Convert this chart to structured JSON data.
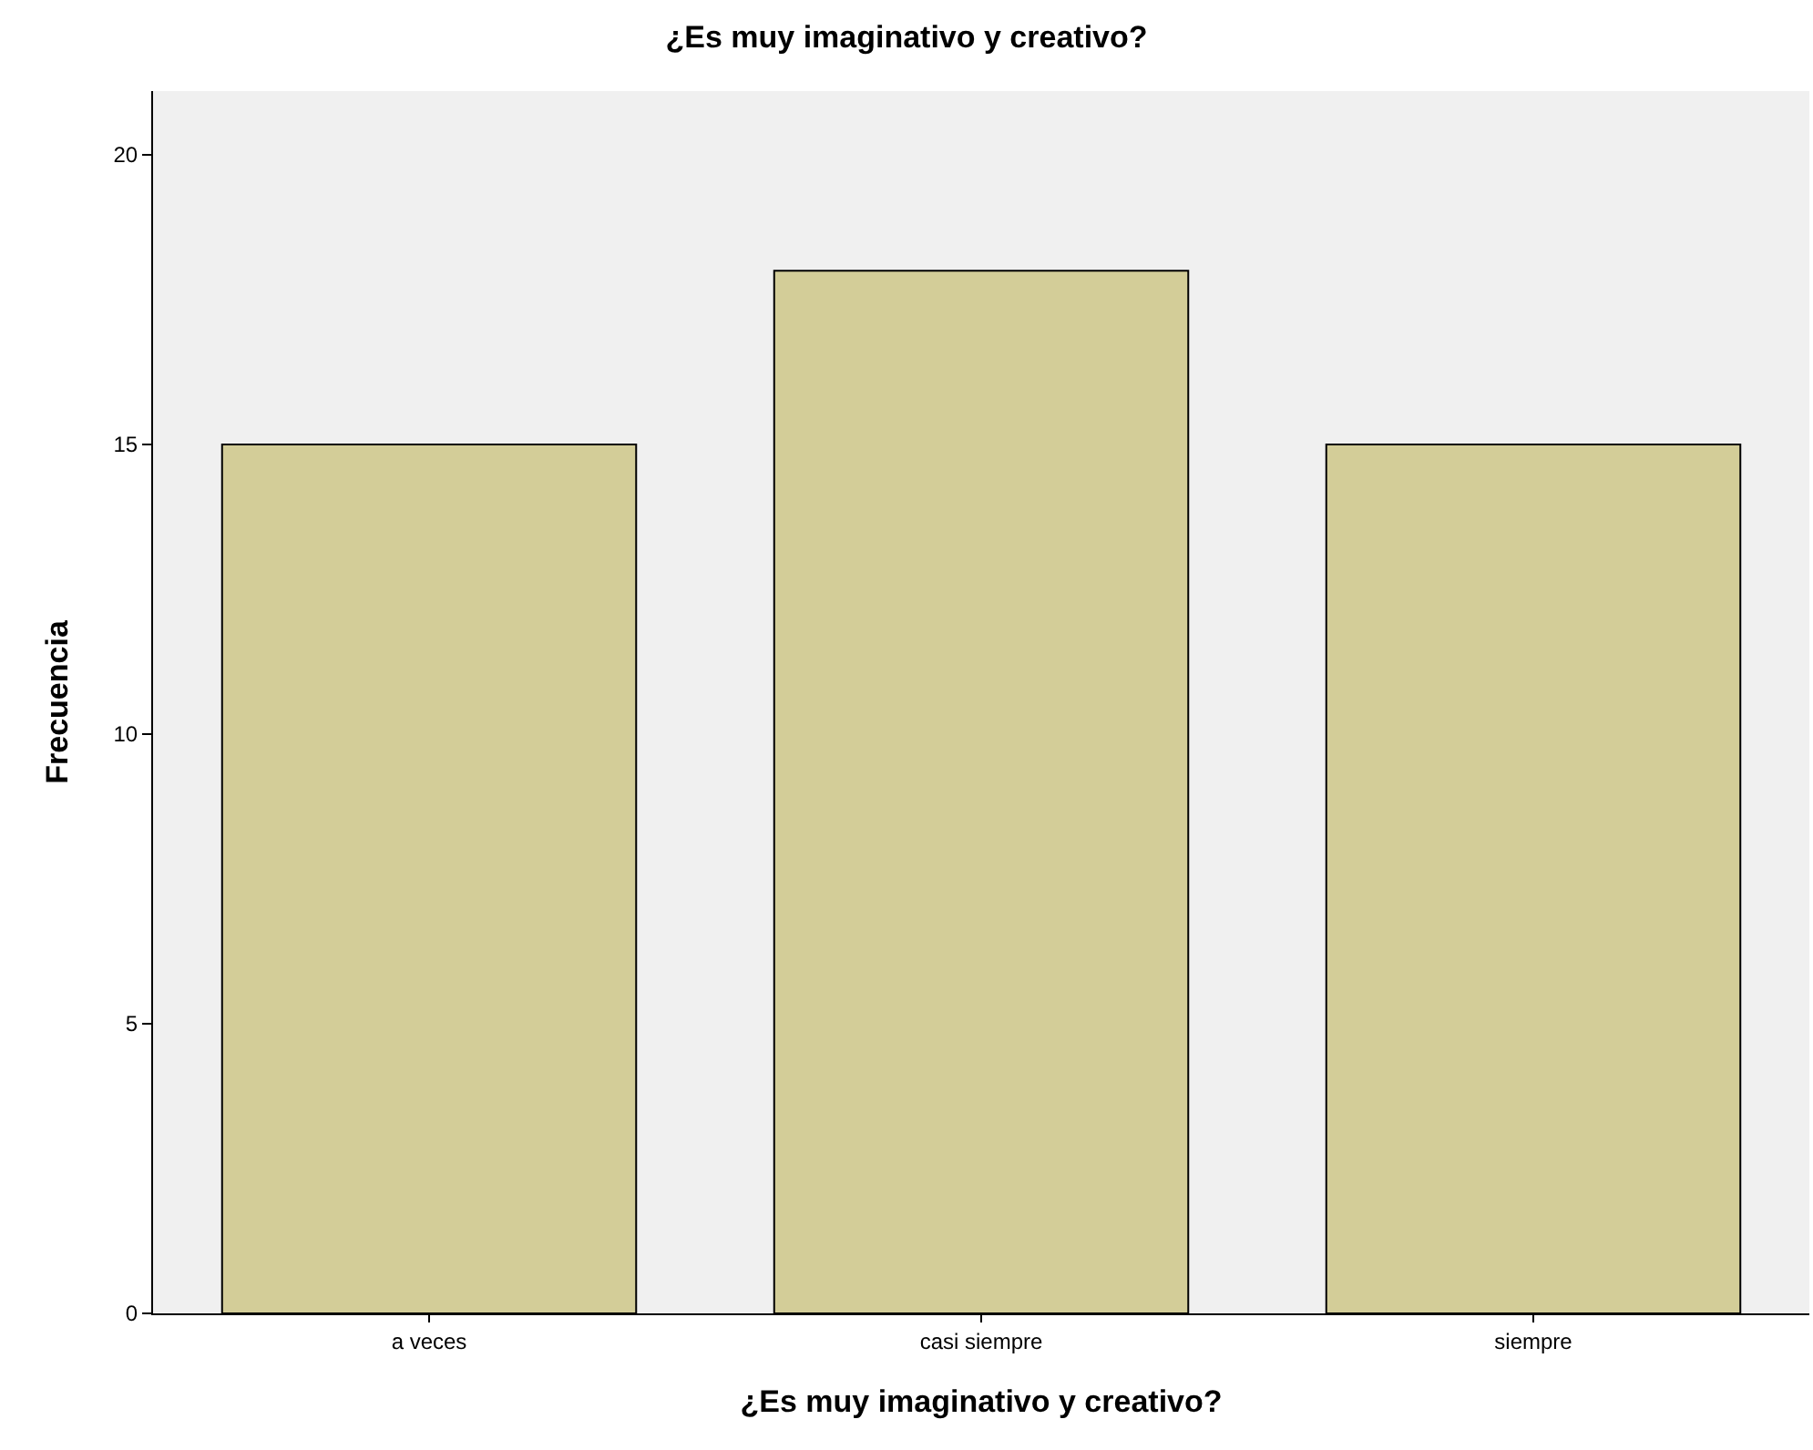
{
  "chart_data": {
    "type": "bar",
    "title": "¿Es muy imaginativo y creativo?",
    "xlabel": "¿Es muy imaginativo y creativo?",
    "ylabel": "Frecuencia",
    "categories": [
      "a veces",
      "casi siempre",
      "siempre"
    ],
    "values": [
      15,
      18,
      15
    ],
    "color": "#d3cd98",
    "ylim": [
      0,
      21.1
    ],
    "yticks": [
      0,
      5,
      10,
      15,
      20
    ],
    "grid": false,
    "legend": false
  }
}
